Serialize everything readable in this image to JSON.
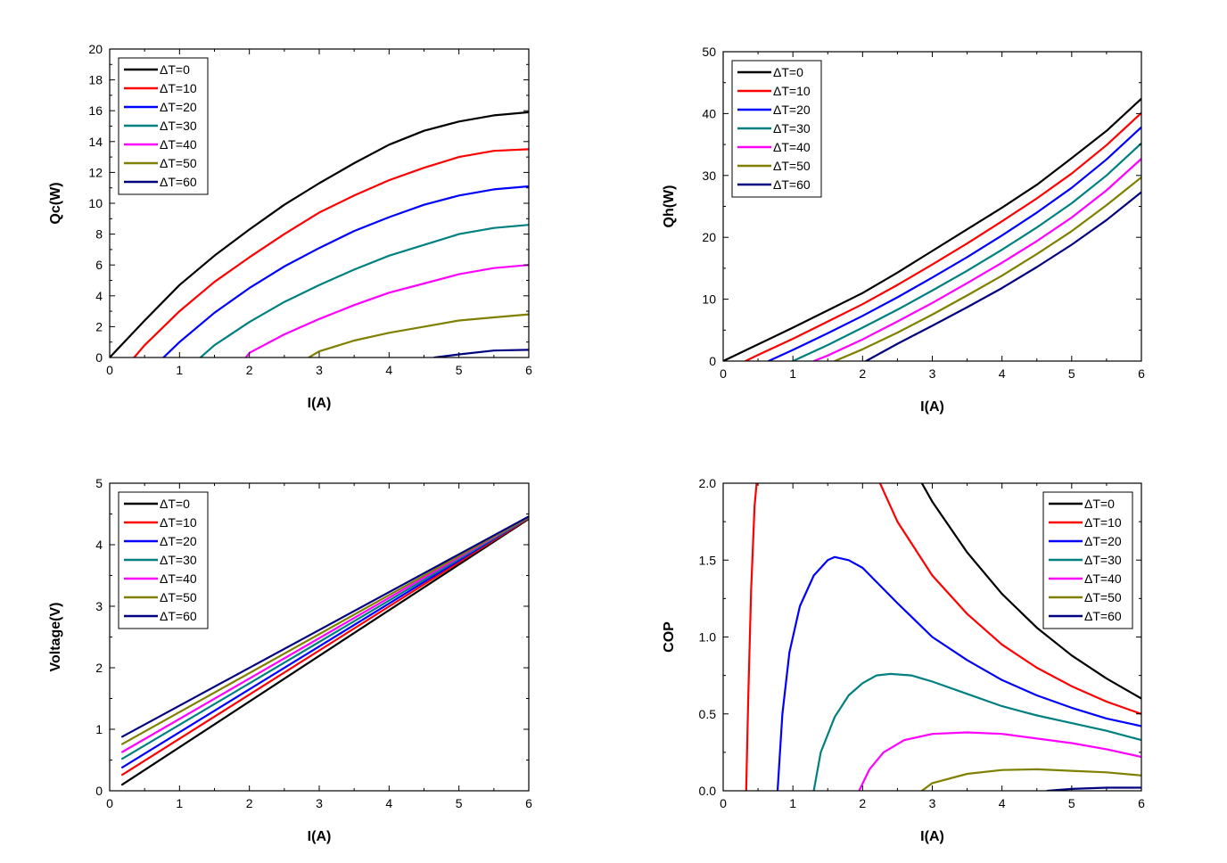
{
  "chart_data": [
    {
      "type": "line",
      "xlabel": "I(A)",
      "ylabel": "Qc(W)",
      "xlim": [
        0,
        6
      ],
      "ylim": [
        0,
        20
      ],
      "xticks": [
        "0",
        "1",
        "2",
        "3",
        "4",
        "5",
        "6"
      ],
      "yticks": [
        "0",
        "2",
        "4",
        "6",
        "8",
        "10",
        "12",
        "14",
        "16",
        "18",
        "20"
      ],
      "legend_position": "top-left",
      "series": [
        {
          "name": "ΔT=0",
          "color": "#000000",
          "x": [
            0,
            0.5,
            1,
            1.5,
            2,
            2.5,
            3,
            3.5,
            4,
            4.5,
            5,
            5.5,
            6
          ],
          "y": [
            0,
            2.4,
            4.7,
            6.6,
            8.3,
            9.9,
            11.3,
            12.6,
            13.8,
            14.7,
            15.3,
            15.7,
            15.9
          ]
        },
        {
          "name": "ΔT=10",
          "color": "#ff0000",
          "x": [
            0.35,
            0.5,
            1,
            1.5,
            2,
            2.5,
            3,
            3.5,
            4,
            4.5,
            5,
            5.5,
            6
          ],
          "y": [
            0,
            0.8,
            3.0,
            4.9,
            6.5,
            8.0,
            9.4,
            10.5,
            11.5,
            12.3,
            13.0,
            13.4,
            13.5
          ]
        },
        {
          "name": "ΔT=20",
          "color": "#0000ff",
          "x": [
            0.77,
            1,
            1.5,
            2,
            2.5,
            3,
            3.5,
            4,
            4.5,
            5,
            5.5,
            6
          ],
          "y": [
            0,
            1.0,
            2.9,
            4.5,
            5.9,
            7.1,
            8.2,
            9.1,
            9.9,
            10.5,
            10.9,
            11.1
          ]
        },
        {
          "name": "ΔT=30",
          "color": "#008080",
          "x": [
            1.3,
            1.5,
            2,
            2.5,
            3,
            3.5,
            4,
            4.5,
            5,
            5.5,
            6
          ],
          "y": [
            0,
            0.8,
            2.3,
            3.6,
            4.7,
            5.7,
            6.6,
            7.3,
            8.0,
            8.4,
            8.6
          ]
        },
        {
          "name": "ΔT=40",
          "color": "#ff00ff",
          "x": [
            1.95,
            2,
            2.5,
            3,
            3.5,
            4,
            4.5,
            5,
            5.5,
            6
          ],
          "y": [
            0,
            0.3,
            1.5,
            2.5,
            3.4,
            4.2,
            4.8,
            5.4,
            5.8,
            6.0
          ]
        },
        {
          "name": "ΔT=50",
          "color": "#808000",
          "x": [
            2.85,
            3,
            3.5,
            4,
            4.5,
            5,
            5.5,
            6
          ],
          "y": [
            0,
            0.4,
            1.1,
            1.6,
            2.0,
            2.4,
            2.6,
            2.8
          ]
        },
        {
          "name": "ΔT=60",
          "color": "#000080",
          "x": [
            4.65,
            5,
            5.5,
            6
          ],
          "y": [
            0,
            0.2,
            0.45,
            0.5
          ]
        }
      ]
    },
    {
      "type": "line",
      "xlabel": "I(A)",
      "ylabel": "Qh(W)",
      "xlim": [
        0,
        6
      ],
      "ylim": [
        0,
        50
      ],
      "xticks": [
        "0",
        "1",
        "2",
        "3",
        "4",
        "5",
        "6"
      ],
      "yticks": [
        "0",
        "10",
        "20",
        "30",
        "40",
        "50"
      ],
      "legend_position": "top-left",
      "series": [
        {
          "name": "ΔT=0",
          "color": "#000000",
          "x": [
            0,
            0.5,
            1,
            1.5,
            2,
            2.5,
            3,
            3.5,
            4,
            4.5,
            5,
            5.5,
            6
          ],
          "y": [
            0,
            2.7,
            5.4,
            8.2,
            11.0,
            14.3,
            17.8,
            21.3,
            24.8,
            28.5,
            32.8,
            37.2,
            42.4
          ]
        },
        {
          "name": "ΔT=10",
          "color": "#ff0000",
          "x": [
            0.32,
            0.5,
            1,
            1.5,
            2,
            2.5,
            3,
            3.5,
            4,
            4.5,
            5,
            5.5,
            6
          ],
          "y": [
            0,
            1.0,
            3.6,
            6.4,
            9.2,
            12.3,
            15.6,
            19.0,
            22.6,
            26.3,
            30.3,
            34.9,
            40.1
          ]
        },
        {
          "name": "ΔT=20",
          "color": "#0000ff",
          "x": [
            0.65,
            1,
            1.5,
            2,
            2.5,
            3,
            3.5,
            4,
            4.5,
            5,
            5.5,
            6
          ],
          "y": [
            0,
            1.8,
            4.5,
            7.3,
            10.3,
            13.5,
            16.8,
            20.3,
            24.0,
            28.0,
            32.6,
            37.8
          ]
        },
        {
          "name": "ΔT=30",
          "color": "#008080",
          "x": [
            1.0,
            1.5,
            2,
            2.5,
            3,
            3.5,
            4,
            4.5,
            5,
            5.5,
            6
          ],
          "y": [
            0,
            2.6,
            5.4,
            8.3,
            11.4,
            14.6,
            18.0,
            21.6,
            25.5,
            30.0,
            35.2
          ]
        },
        {
          "name": "ΔT=40",
          "color": "#ff00ff",
          "x": [
            1.3,
            1.5,
            2,
            2.5,
            3,
            3.5,
            4,
            4.5,
            5,
            5.5,
            6
          ],
          "y": [
            0,
            0.9,
            3.5,
            6.4,
            9.4,
            12.6,
            15.9,
            19.4,
            23.2,
            27.6,
            32.7
          ]
        },
        {
          "name": "ΔT=50",
          "color": "#808000",
          "x": [
            1.6,
            2,
            2.5,
            3,
            3.5,
            4,
            4.5,
            5,
            5.5,
            6
          ],
          "y": [
            0,
            1.9,
            4.6,
            7.5,
            10.6,
            13.8,
            17.3,
            21.0,
            25.2,
            29.7
          ]
        },
        {
          "name": "ΔT=60",
          "color": "#000080",
          "x": [
            2.05,
            2.5,
            3,
            3.5,
            4,
            4.5,
            5,
            5.5,
            6
          ],
          "y": [
            0,
            2.8,
            5.7,
            8.7,
            11.8,
            15.2,
            18.8,
            22.8,
            27.3
          ]
        }
      ]
    },
    {
      "type": "line",
      "xlabel": "I(A)",
      "ylabel": "Voltage(V)",
      "xlim": [
        0,
        6
      ],
      "ylim": [
        0,
        5
      ],
      "xticks": [
        "0",
        "1",
        "2",
        "3",
        "4",
        "5",
        "6"
      ],
      "yticks": [
        "0",
        "1",
        "2",
        "3",
        "4",
        "5"
      ],
      "legend_position": "top-left",
      "series": [
        {
          "name": "ΔT=0",
          "color": "#000000",
          "x": [
            0.18,
            6
          ],
          "y": [
            0.1,
            4.42
          ]
        },
        {
          "name": "ΔT=10",
          "color": "#ff0000",
          "x": [
            0.18,
            6
          ],
          "y": [
            0.26,
            4.43
          ]
        },
        {
          "name": "ΔT=20",
          "color": "#0000ff",
          "x": [
            0.18,
            6
          ],
          "y": [
            0.38,
            4.44
          ]
        },
        {
          "name": "ΔT=30",
          "color": "#008080",
          "x": [
            0.18,
            6
          ],
          "y": [
            0.52,
            4.44
          ]
        },
        {
          "name": "ΔT=40",
          "color": "#ff00ff",
          "x": [
            0.18,
            6
          ],
          "y": [
            0.63,
            4.45
          ]
        },
        {
          "name": "ΔT=50",
          "color": "#808000",
          "x": [
            0.18,
            6
          ],
          "y": [
            0.76,
            4.45
          ]
        },
        {
          "name": "ΔT=60",
          "color": "#000080",
          "x": [
            0.18,
            6
          ],
          "y": [
            0.88,
            4.46
          ]
        }
      ]
    },
    {
      "type": "line",
      "xlabel": "I(A)",
      "ylabel": "COP",
      "xlim": [
        0,
        6
      ],
      "ylim": [
        0,
        2.0
      ],
      "xticks": [
        "0",
        "1",
        "2",
        "3",
        "4",
        "5",
        "6"
      ],
      "yticks": [
        "0.0",
        "0.5",
        "1.0",
        "1.5",
        "2.0"
      ],
      "legend_position": "top-right",
      "series": [
        {
          "name": "ΔT=0",
          "color": "#000000",
          "x": [
            2.85,
            3,
            3.5,
            4,
            4.5,
            5,
            5.5,
            6
          ],
          "y": [
            2.0,
            1.88,
            1.55,
            1.28,
            1.06,
            0.88,
            0.73,
            0.6
          ]
        },
        {
          "name": "ΔT=10",
          "color": "#ff0000",
          "x": [
            0.33,
            0.36,
            0.4,
            0.45,
            0.48
          ],
          "y": [
            0.0,
            0.6,
            1.3,
            1.85,
            2.0
          ]
        },
        {
          "name": "ΔT=10",
          "color": "#ff0000",
          "x": [
            2.25,
            2.5,
            3,
            3.5,
            4,
            4.5,
            5,
            5.5,
            6
          ],
          "y": [
            2.0,
            1.75,
            1.4,
            1.15,
            0.95,
            0.8,
            0.68,
            0.58,
            0.5
          ]
        },
        {
          "name": "ΔT=20",
          "color": "#0000ff",
          "x": [
            0.78,
            0.85,
            0.95,
            1.1,
            1.3,
            1.5,
            1.6,
            1.8,
            2,
            2.5,
            3,
            3.5,
            4,
            4.5,
            5,
            5.5,
            6
          ],
          "y": [
            0.0,
            0.5,
            0.9,
            1.2,
            1.4,
            1.5,
            1.52,
            1.5,
            1.45,
            1.22,
            1.0,
            0.85,
            0.72,
            0.62,
            0.54,
            0.47,
            0.42
          ]
        },
        {
          "name": "ΔT=30",
          "color": "#008080",
          "x": [
            1.3,
            1.4,
            1.6,
            1.8,
            2,
            2.2,
            2.4,
            2.7,
            3,
            3.5,
            4,
            4.5,
            5,
            5.5,
            6
          ],
          "y": [
            0.0,
            0.25,
            0.48,
            0.62,
            0.7,
            0.75,
            0.76,
            0.75,
            0.71,
            0.63,
            0.55,
            0.49,
            0.44,
            0.39,
            0.33
          ]
        },
        {
          "name": "ΔT=40",
          "color": "#ff00ff",
          "x": [
            1.95,
            2.1,
            2.3,
            2.6,
            3,
            3.5,
            4,
            4.5,
            5,
            5.5,
            6
          ],
          "y": [
            0.0,
            0.14,
            0.25,
            0.33,
            0.37,
            0.38,
            0.37,
            0.34,
            0.31,
            0.27,
            0.22
          ]
        },
        {
          "name": "ΔT=50",
          "color": "#808000",
          "x": [
            2.85,
            3,
            3.5,
            4,
            4.5,
            5,
            5.5,
            6
          ],
          "y": [
            0.0,
            0.05,
            0.11,
            0.135,
            0.14,
            0.13,
            0.12,
            0.1
          ]
        },
        {
          "name": "ΔT=60",
          "color": "#000080",
          "x": [
            4.65,
            5,
            5.5,
            6
          ],
          "y": [
            0.0,
            0.012,
            0.02,
            0.02
          ]
        }
      ]
    }
  ]
}
